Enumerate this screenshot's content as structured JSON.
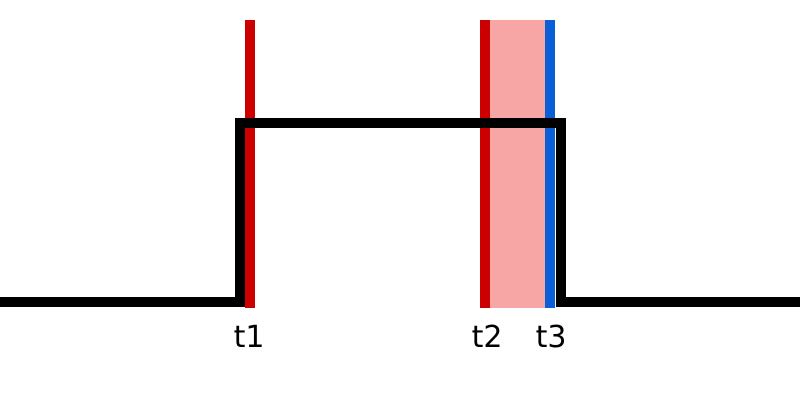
{
  "diagram": {
    "markers": [
      {
        "id": "t1",
        "label": "t1",
        "color": "#cc0000"
      },
      {
        "id": "t2",
        "label": "t2",
        "color": "#cc0000"
      },
      {
        "id": "t3",
        "label": "t3",
        "color": "#0a5fd6"
      }
    ],
    "highlight_color": "#f8a5a5",
    "signal_color": "#000000",
    "background": "#ffffff"
  }
}
